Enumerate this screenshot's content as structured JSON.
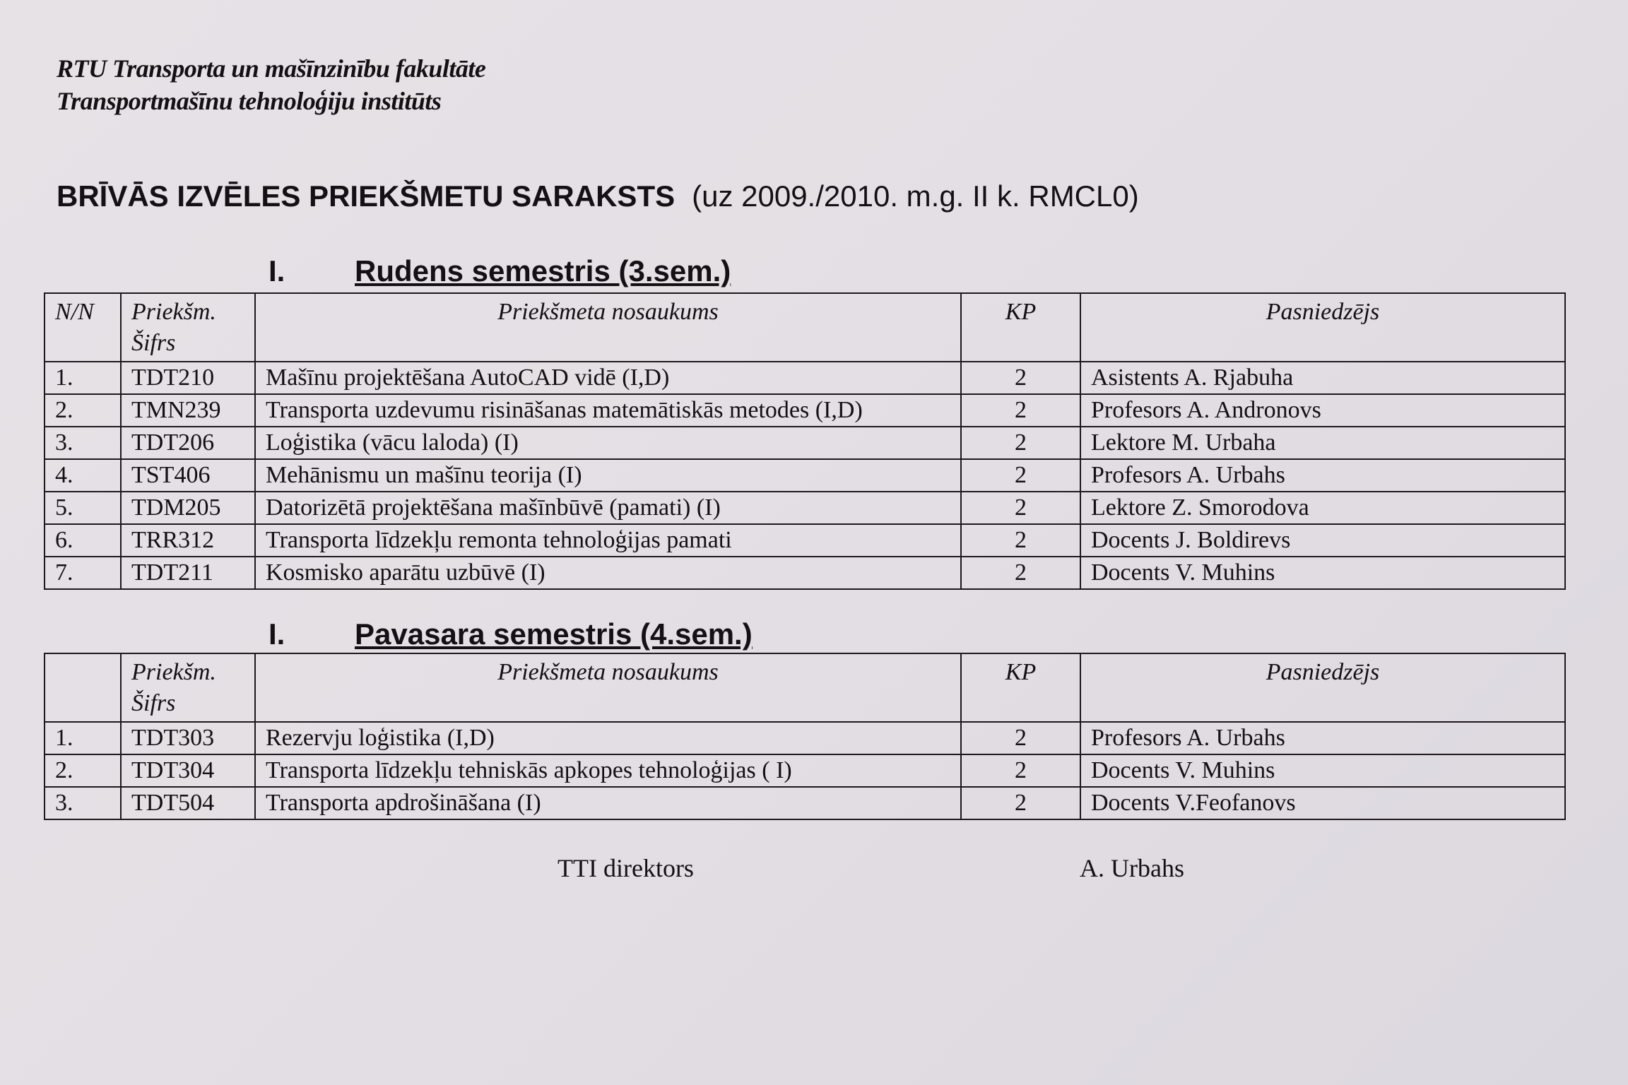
{
  "header": {
    "faculty": "RTU Transporta un mašīnzinību  fakultāte",
    "institute": "Transportmašīnu tehnoloģiju institūts"
  },
  "title": {
    "main": "BRĪVĀS IZVĒLES PRIEKŠMETU SARAKSTS",
    "sub": "(uz 2009./2010. m.g. II k. RMCL0)"
  },
  "sections": [
    {
      "number": "I.",
      "heading": "Rudens semestris (3.sem.)",
      "columns": [
        "N/N",
        "Priekšm. Šifrs",
        "Priekšmeta nosaukums",
        "KP",
        "Pasniedzējs"
      ],
      "col_code_line1": "Priekšm.",
      "col_code_line2": "Šifrs",
      "rows": [
        [
          "1.",
          "TDT210",
          "Mašīnu projektēšana AutoCAD vidē (I,D)",
          "2",
          "Asistents A. Rjabuha"
        ],
        [
          "2.",
          "TMN239",
          "Transporta uzdevumu risināšanas matemātiskās metodes  (I,D)",
          "2",
          "Profesors A. Andronovs"
        ],
        [
          "3.",
          "TDT206",
          "Loģistika (vācu laloda) (I)",
          "2",
          "Lektore  M. Urbaha"
        ],
        [
          "4.",
          "TST406",
          "Mehānismu un mašīnu teorija (I)",
          "2",
          "Profesors  A. Urbahs"
        ],
        [
          "5.",
          "TDM205",
          "Datorizētā projektēšana mašīnbūvē (pamati) (I)",
          "2",
          "Lektore  Z. Smorodova"
        ],
        [
          "6.",
          "TRR312",
          "Transporta līdzekļu remonta tehnoloģijas pamati",
          "2",
          "Docents  J. Boldirevs"
        ],
        [
          "7.",
          "TDT211",
          "Kosmisko aparātu uzbūvē  (I)",
          "2",
          "Docents V. Muhins"
        ]
      ]
    },
    {
      "number": "I.",
      "heading": "Pavasara semestris (4.sem.)",
      "columns": [
        "",
        "Priekšm. Šifrs",
        "Priekšmeta nosaukums",
        "KP",
        "Pasniedzējs"
      ],
      "col_code_line1": "Priekšm.",
      "col_code_line2": "Šifrs",
      "rows": [
        [
          "1.",
          "TDT303",
          "Rezervju loģistika (I,D)",
          "2",
          "Profesors A. Urbahs"
        ],
        [
          "2.",
          "TDT304",
          "Transporta līdzekļu tehniskās apkopes tehnoloģijas ( I)",
          "2",
          "Docents  V. Muhins"
        ],
        [
          "3.",
          "TDT504",
          "Transporta apdrošināšana (I)",
          "2",
          "Docents V.Feofanovs"
        ]
      ]
    }
  ],
  "footer": {
    "role": "TTI direktors",
    "name": "A. Urbahs"
  }
}
